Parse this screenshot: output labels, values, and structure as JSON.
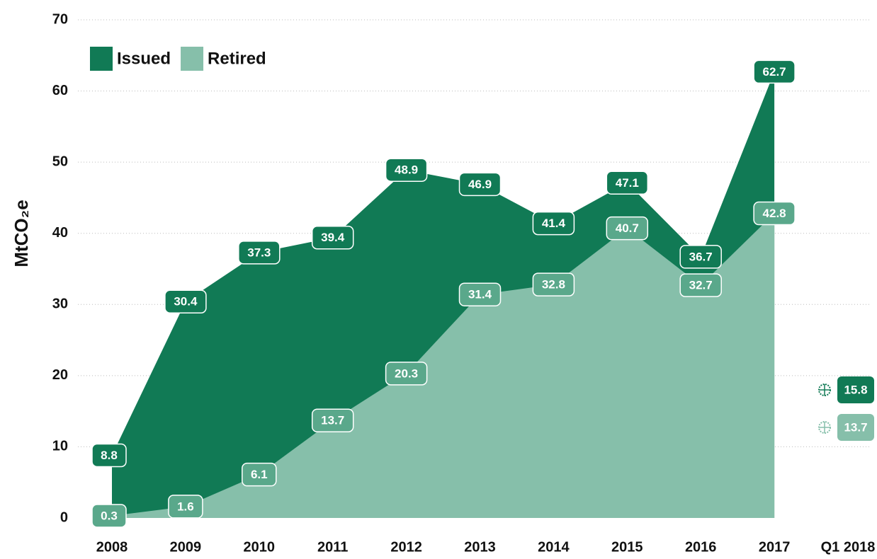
{
  "chart_data": {
    "type": "area",
    "y_label": "MtCO₂e",
    "categories": [
      "2008",
      "2009",
      "2010",
      "2011",
      "2012",
      "2013",
      "2014",
      "2015",
      "2016",
      "2017",
      "Q1 2018"
    ],
    "series": [
      {
        "name": "Issued",
        "color": "#117a55",
        "values": [
          8.8,
          30.4,
          37.3,
          39.4,
          48.9,
          46.9,
          41.4,
          47.1,
          36.7,
          62.7,
          15.8
        ]
      },
      {
        "name": "Retired",
        "color": "#86bfaa",
        "values": [
          0.3,
          1.6,
          6.1,
          13.7,
          20.3,
          31.4,
          32.8,
          40.7,
          32.7,
          42.8,
          13.7
        ]
      }
    ],
    "last_category_partial": true,
    "ylim": [
      0,
      70
    ],
    "yticks": [
      0,
      10,
      20,
      30,
      40,
      50,
      60,
      70
    ],
    "grid": true,
    "legend": "top-left"
  }
}
